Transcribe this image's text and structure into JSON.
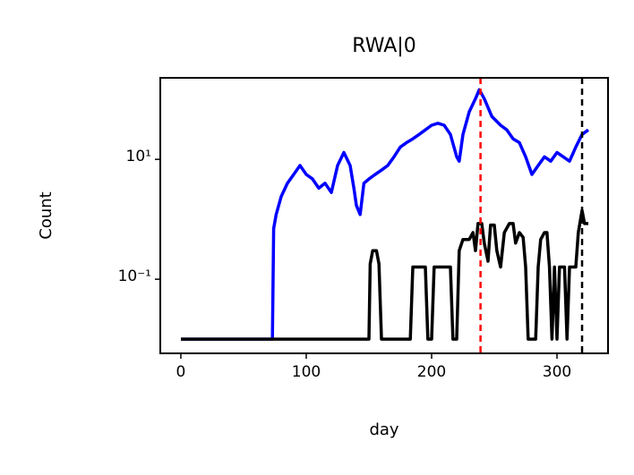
{
  "chart_data": {
    "type": "line",
    "title": "RWA|0",
    "xlabel": "day",
    "ylabel": "Count",
    "yscale": "log",
    "grid": false,
    "xlim": [
      -16.4,
      340.7
    ],
    "ylim": [
      0.0058,
      229
    ],
    "xticks": [
      0,
      100,
      200,
      300
    ],
    "yticks": [
      {
        "value": 0.1,
        "label": "10⁻¹"
      },
      {
        "value": 10,
        "label": "10¹"
      }
    ],
    "series": [
      {
        "color": "#0000ff",
        "x": [
          0,
          73,
          74,
          76,
          80,
          85,
          90,
          95,
          100,
          105,
          110,
          115,
          120,
          125,
          130,
          135,
          138,
          140,
          143,
          146,
          150,
          155,
          160,
          165,
          170,
          175,
          180,
          185,
          190,
          195,
          200,
          205,
          210,
          215,
          220,
          222,
          225,
          230,
          235,
          238,
          242,
          248,
          255,
          260,
          265,
          270,
          275,
          280,
          285,
          290,
          295,
          300,
          305,
          310,
          315,
          320,
          325
        ],
        "values": [
          0.01,
          0.01,
          0.7,
          1.2,
          2.4,
          4,
          5.6,
          7.9,
          5.6,
          4.7,
          3.3,
          4,
          2.8,
          7.9,
          13,
          7.9,
          3.3,
          1.7,
          1.2,
          4,
          4.7,
          5.6,
          6.6,
          7.9,
          11,
          16,
          19,
          22,
          26,
          31,
          37,
          40,
          37,
          26,
          11,
          9.3,
          26,
          62,
          103,
          145,
          103,
          52,
          37,
          31,
          22,
          19,
          11,
          5.6,
          7.9,
          11,
          9.3,
          13,
          11,
          9.3,
          16,
          26,
          31
        ]
      },
      {
        "color": "#000000",
        "x": [
          0,
          150,
          151,
          153,
          156,
          158,
          160,
          183,
          185,
          195,
          197,
          200,
          202,
          215,
          217,
          220,
          222,
          225,
          230,
          233,
          235,
          237,
          240,
          242,
          245,
          247,
          250,
          252,
          255,
          258,
          262,
          265,
          267,
          270,
          273,
          275,
          277,
          283,
          285,
          287,
          290,
          292,
          294,
          296,
          298,
          300,
          302,
          306,
          308,
          310,
          315,
          317,
          320,
          322,
          325
        ],
        "values": [
          0.01,
          0.01,
          0.18,
          0.3,
          0.3,
          0.18,
          0.01,
          0.01,
          0.16,
          0.16,
          0.01,
          0.01,
          0.16,
          0.16,
          0.01,
          0.01,
          0.3,
          0.46,
          0.46,
          0.6,
          0.3,
          0.85,
          0.85,
          0.4,
          0.2,
          0.8,
          0.8,
          0.3,
          0.16,
          0.6,
          0.85,
          0.85,
          0.4,
          0.6,
          0.5,
          0.16,
          0.01,
          0.01,
          0.16,
          0.46,
          0.6,
          0.6,
          0.16,
          0.01,
          0.16,
          0.01,
          0.16,
          0.16,
          0.01,
          0.16,
          0.16,
          0.6,
          1.4,
          0.85,
          0.85
        ]
      }
    ],
    "vlines": [
      {
        "x": 239,
        "color": "#ff0000"
      },
      {
        "x": 320,
        "color": "#000000"
      }
    ]
  }
}
